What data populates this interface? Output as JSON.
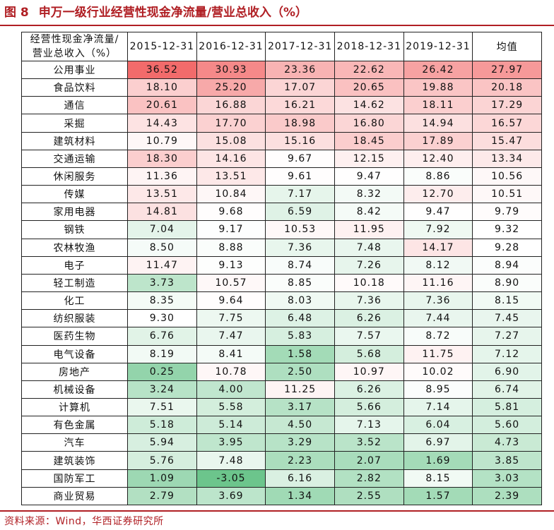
{
  "figure": {
    "number": "图 8",
    "title": "申万一级行业经营性现金净流量/营业总收入（%）"
  },
  "source": "资料来源：Wind，华西证券研究所",
  "table": {
    "corner_label": [
      "经营性现金净流量/",
      "营业总收入（%）"
    ],
    "columns": [
      "2015-12-31",
      "2016-12-31",
      "2017-12-31",
      "2018-12-31",
      "2019-12-31",
      "均值"
    ],
    "colors": {
      "high": "#f26b6b",
      "mid": "#ffffff",
      "low": "#6cc58c"
    },
    "color_scale": {
      "min": -3.05,
      "mid": 9.3,
      "max": 36.52
    },
    "rows": [
      {
        "industry": "公用事业",
        "values": [
          "36.52",
          "30.93",
          "23.36",
          "22.62",
          "26.42",
          "27.97"
        ]
      },
      {
        "industry": "食品饮料",
        "values": [
          "18.10",
          "25.20",
          "17.07",
          "20.65",
          "19.88",
          "20.18"
        ]
      },
      {
        "industry": "通信",
        "values": [
          "20.61",
          "16.88",
          "16.21",
          "14.62",
          "18.11",
          "17.29"
        ]
      },
      {
        "industry": "采掘",
        "values": [
          "14.43",
          "17.70",
          "18.98",
          "16.80",
          "14.94",
          "16.57"
        ]
      },
      {
        "industry": "建筑材料",
        "values": [
          "10.79",
          "15.08",
          "15.16",
          "18.45",
          "17.89",
          "15.47"
        ]
      },
      {
        "industry": "交通运输",
        "values": [
          "18.30",
          "14.16",
          "9.67",
          "12.15",
          "12.40",
          "13.34"
        ]
      },
      {
        "industry": "休闲服务",
        "values": [
          "11.36",
          "13.51",
          "9.61",
          "9.47",
          "8.86",
          "10.56"
        ]
      },
      {
        "industry": "传媒",
        "values": [
          "13.51",
          "10.84",
          "7.17",
          "8.32",
          "12.70",
          "10.51"
        ]
      },
      {
        "industry": "家用电器",
        "values": [
          "14.81",
          "9.68",
          "6.59",
          "8.42",
          "9.47",
          "9.79"
        ]
      },
      {
        "industry": "钢铁",
        "values": [
          "7.04",
          "9.17",
          "10.53",
          "11.95",
          "7.92",
          "9.32"
        ]
      },
      {
        "industry": "农林牧渔",
        "values": [
          "8.50",
          "8.88",
          "7.36",
          "7.48",
          "14.17",
          "9.28"
        ]
      },
      {
        "industry": "电子",
        "values": [
          "11.47",
          "9.13",
          "8.74",
          "7.26",
          "8.12",
          "8.94"
        ]
      },
      {
        "industry": "轻工制造",
        "values": [
          "3.73",
          "10.57",
          "8.85",
          "10.18",
          "11.16",
          "8.90"
        ]
      },
      {
        "industry": "化工",
        "values": [
          "8.35",
          "9.64",
          "8.03",
          "7.36",
          "7.36",
          "8.15"
        ]
      },
      {
        "industry": "纺织服装",
        "values": [
          "9.30",
          "7.75",
          "6.48",
          "6.26",
          "7.44",
          "7.45"
        ]
      },
      {
        "industry": "医药生物",
        "values": [
          "6.76",
          "7.47",
          "5.83",
          "7.57",
          "8.72",
          "7.27"
        ]
      },
      {
        "industry": "电气设备",
        "values": [
          "8.19",
          "8.41",
          "1.58",
          "5.68",
          "11.75",
          "7.12"
        ]
      },
      {
        "industry": "房地产",
        "values": [
          "0.25",
          "10.78",
          "2.50",
          "10.97",
          "10.02",
          "6.90"
        ]
      },
      {
        "industry": "机械设备",
        "values": [
          "3.24",
          "4.00",
          "11.25",
          "6.26",
          "8.95",
          "6.74"
        ]
      },
      {
        "industry": "计算机",
        "values": [
          "7.51",
          "5.58",
          "3.17",
          "5.66",
          "7.14",
          "5.81"
        ]
      },
      {
        "industry": "有色金属",
        "values": [
          "5.18",
          "5.14",
          "4.50",
          "7.13",
          "6.04",
          "5.60"
        ]
      },
      {
        "industry": "汽车",
        "values": [
          "5.94",
          "3.95",
          "3.29",
          "3.52",
          "6.97",
          "4.73"
        ]
      },
      {
        "industry": "建筑装饰",
        "values": [
          "5.76",
          "7.48",
          "2.23",
          "2.07",
          "1.69",
          "3.85"
        ]
      },
      {
        "industry": "国防军工",
        "values": [
          "1.09",
          "-3.05",
          "6.16",
          "2.82",
          "8.15",
          "3.03"
        ]
      },
      {
        "industry": "商业贸易",
        "values": [
          "2.79",
          "3.69",
          "1.34",
          "2.55",
          "1.57",
          "2.39"
        ]
      }
    ]
  }
}
